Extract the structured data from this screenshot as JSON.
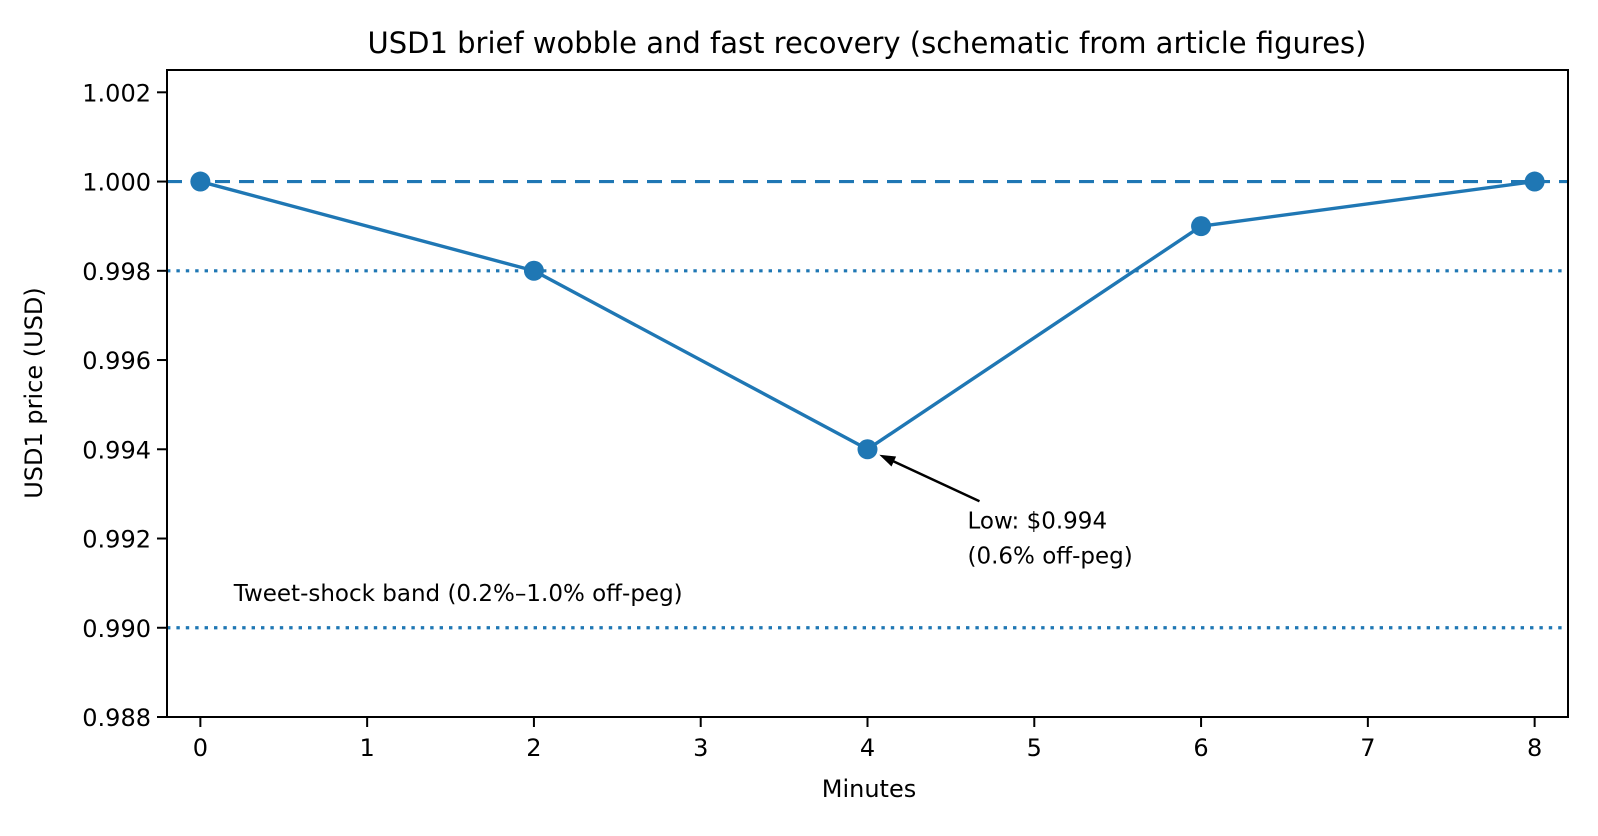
{
  "figure": {
    "background": "#ffffff",
    "axis_color": "#000000",
    "text_color": "#000000"
  },
  "chart_data": {
    "type": "line",
    "title": "USD1 brief wobble and fast recovery (schematic from article figures)",
    "xlabel": "Minutes",
    "ylabel": "USD1 price (USD)",
    "grid": false,
    "legend": false,
    "xlim": [
      -0.2,
      8.2
    ],
    "ylim": [
      0.988,
      1.0025
    ],
    "series": [
      {
        "name": "USD1 price",
        "color": "#1f77b4",
        "marker": "circle",
        "x": [
          0,
          2,
          4,
          6,
          8
        ],
        "y": [
          1.0,
          0.998,
          0.994,
          0.999,
          1.0
        ]
      }
    ],
    "xticks": {
      "values": [
        0,
        1,
        2,
        3,
        4,
        5,
        6,
        7,
        8
      ],
      "labels": [
        "0",
        "1",
        "2",
        "3",
        "4",
        "5",
        "6",
        "7",
        "8"
      ]
    },
    "yticks": {
      "values": [
        0.988,
        0.99,
        0.992,
        0.994,
        0.996,
        0.998,
        1.0,
        1.002
      ],
      "labels": [
        "0.988",
        "0.990",
        "0.992",
        "0.994",
        "0.996",
        "0.998",
        "1.000",
        "1.002"
      ]
    },
    "hlines": [
      {
        "name": "peg-line",
        "y": 1.0,
        "style": "dashed",
        "color": "#1f77b4"
      },
      {
        "name": "band-upper-line",
        "y": 0.998,
        "style": "dotted",
        "color": "#1f77b4"
      },
      {
        "name": "band-lower-line",
        "y": 0.99,
        "style": "dotted",
        "color": "#1f77b4"
      }
    ],
    "annotation": {
      "line1": "Low: $0.994",
      "line2": "(0.6% off-peg)",
      "target_x": 4,
      "target_y": 0.994,
      "color": "#000000"
    },
    "band_label": {
      "text": "Tweet-shock band (0.2%–1.0% off-peg)",
      "x": 0.2,
      "y": 0.9906
    }
  }
}
